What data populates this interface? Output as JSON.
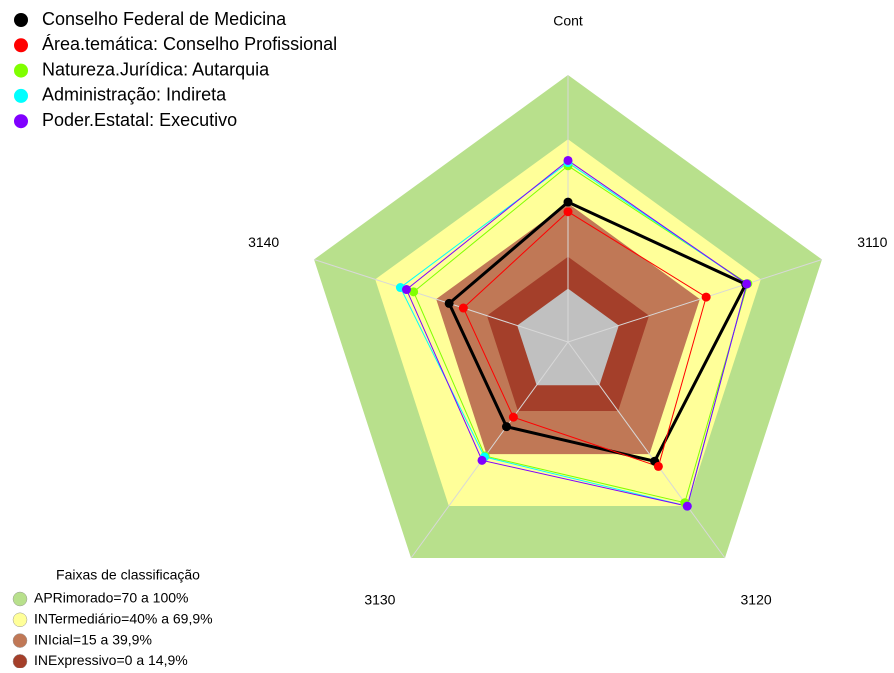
{
  "chart_data": {
    "type": "radar",
    "categories": [
      "Cont",
      "3110",
      "3120",
      "3130",
      "3140"
    ],
    "rlim": [
      -25,
      100
    ],
    "center_color": "#c0c0c0",
    "legend_title": "Faixas de classificação",
    "bands": [
      {
        "label": "APRimorado=70 a 100%",
        "from": 70,
        "to": 100,
        "color": "#b8e08c"
      },
      {
        "label": "INTermediário=40% a 69,9%",
        "from": 40,
        "to": 69.9,
        "color": "#ffff99"
      },
      {
        "label": "INIcial=15 a 39,9%",
        "from": 15,
        "to": 39.9,
        "color": "#c07856"
      },
      {
        "label": "INExpressivo=0 a 14,9%",
        "from": 0,
        "to": 14.9,
        "color": "#a43f2a"
      }
    ],
    "series": [
      {
        "name": "Conselho Federal de Medicina",
        "color": "#000000",
        "values": [
          40.5,
          62.5,
          44,
          24,
          33.5
        ]
      },
      {
        "name": "Área.temática: Conselho Profissional",
        "color": "#ff0000",
        "values": [
          36,
          43,
          47,
          18.5,
          26.5
        ]
      },
      {
        "name": "Natureza.Jurídica: Autarquia",
        "color": "#80ff00",
        "values": [
          57.5,
          63.5,
          68,
          41,
          51
        ]
      },
      {
        "name": "Administração: Indireta",
        "color": "#00ffff",
        "values": [
          59,
          63,
          70,
          41.5,
          57.5
        ]
      },
      {
        "name": "Poder.Estatal: Executivo",
        "color": "#8000ff",
        "values": [
          60,
          63,
          70,
          43.5,
          54.5
        ]
      }
    ]
  }
}
